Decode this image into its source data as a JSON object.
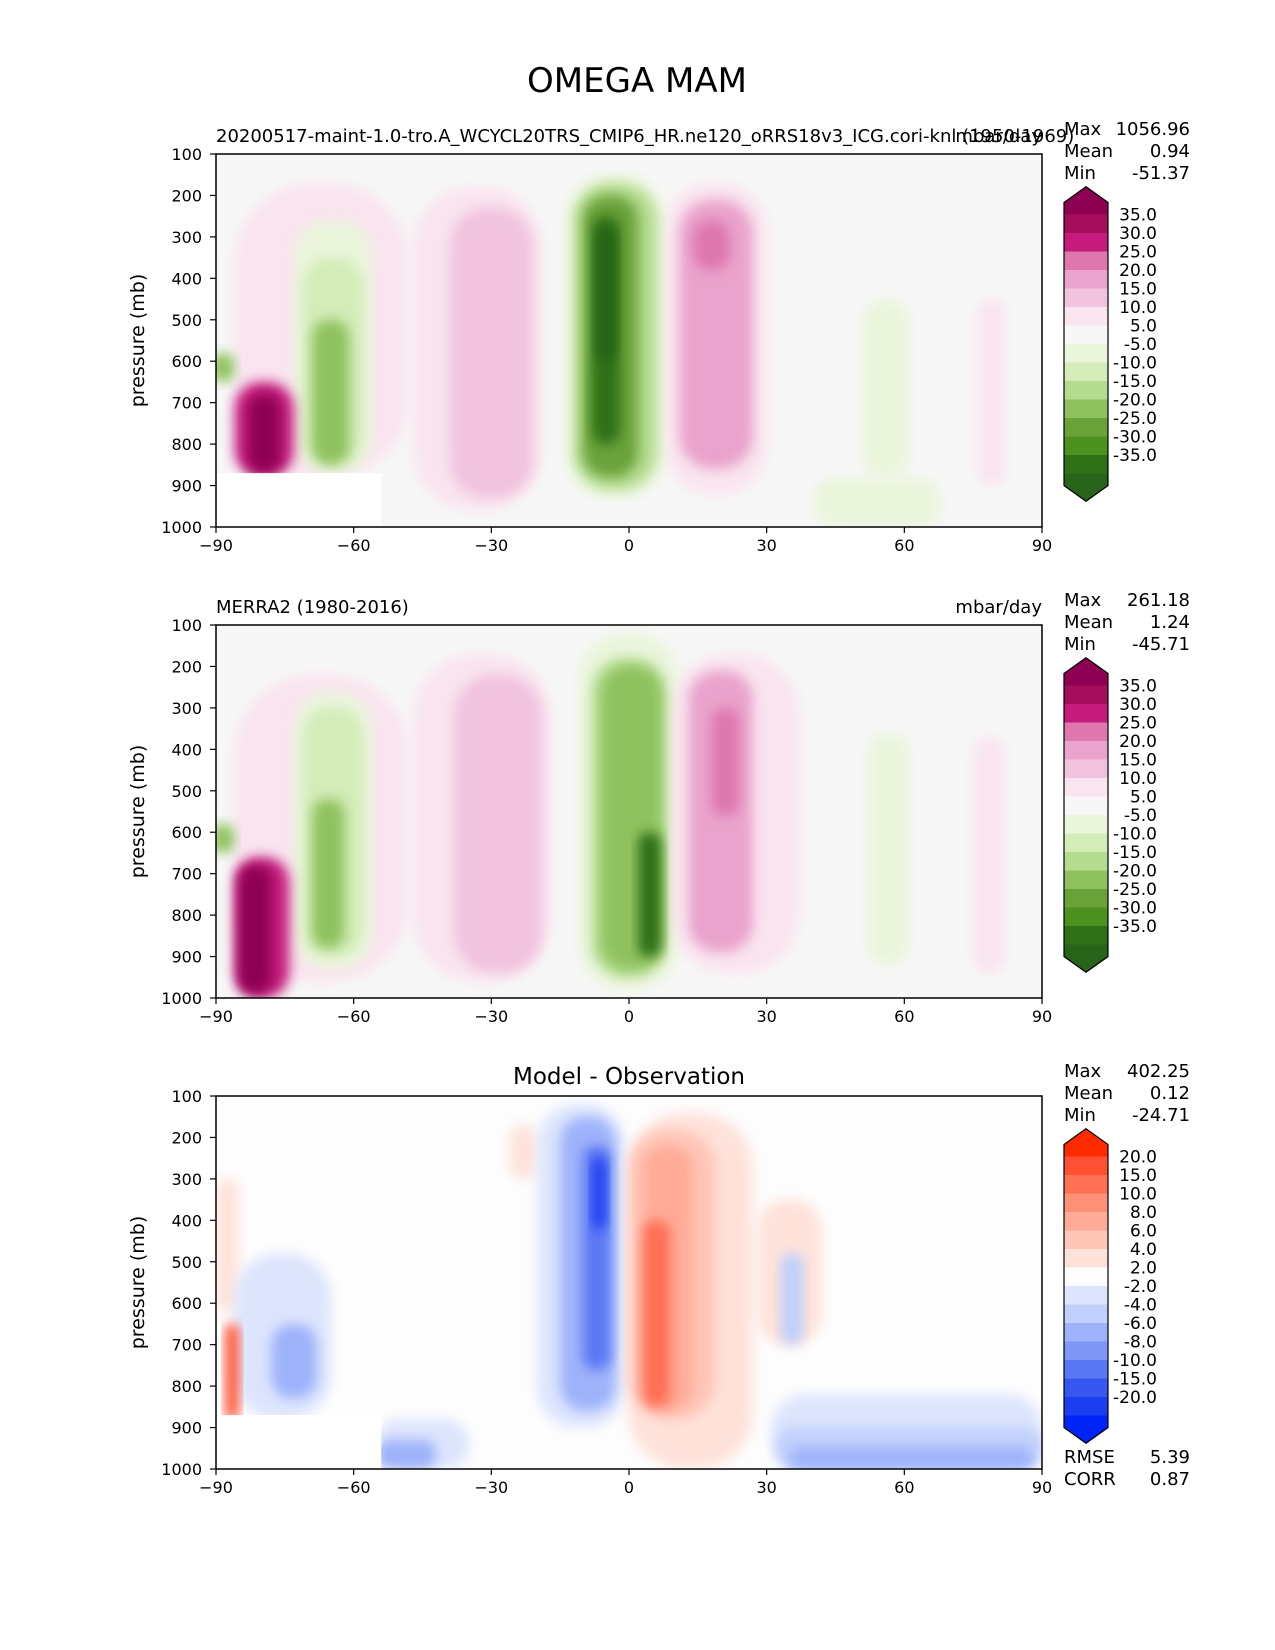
{
  "figure": {
    "title": "OMEGA MAM"
  },
  "chart_data": [
    {
      "type": "heatmap",
      "title": "",
      "subtitle_left": "20200517-maint-1.0-tro.A_WCYCL20TRS_CMIP6_HR.ne120_oRRS18v3_ICG.cori-knl (1950-1969)",
      "units": "mbar/day",
      "xlabel": "",
      "ylabel": "pressure (mb)",
      "xlim": [
        -90,
        90
      ],
      "ylim": [
        1000,
        100
      ],
      "xticks": [
        "−90",
        "−60",
        "−30",
        "0",
        "30",
        "60",
        "90"
      ],
      "yticks": [
        "100",
        "200",
        "300",
        "400",
        "500",
        "600",
        "700",
        "800",
        "900",
        "1000"
      ],
      "stats": {
        "labels": [
          "Max",
          "Mean",
          "Min"
        ],
        "values": [
          "1056.96",
          "0.94",
          "-51.37"
        ]
      },
      "colorbar": {
        "labels": [
          "35.0",
          "30.0",
          "25.0",
          "20.0",
          "15.0",
          "10.0",
          "5.0",
          "-5.0",
          "-10.0",
          "-15.0",
          "-20.0",
          "-25.0",
          "-30.0",
          "-35.0"
        ],
        "colors": [
          "#8e0152",
          "#a50d5d",
          "#c51b7d",
          "#de77ae",
          "#eaa3cc",
          "#f1c3df",
          "#f9e4ef",
          "#f7f7f7",
          "#eaf5dc",
          "#d3ecb8",
          "#b3dc8e",
          "#8fc25e",
          "#6aa23a",
          "#4d9221",
          "#2f7018",
          "#276419"
        ]
      },
      "features": [
        {
          "type": "pos",
          "level": 1,
          "lat": [
            -86,
            -48
          ],
          "p": [
            170,
            880
          ]
        },
        {
          "type": "pos",
          "level": 5,
          "lat": [
            -86,
            -73
          ],
          "p": [
            650,
            880
          ]
        },
        {
          "type": "pos",
          "level": 7,
          "lat": [
            -83,
            -76
          ],
          "p": [
            680,
            870
          ]
        },
        {
          "type": "neg",
          "level": 4,
          "lat": [
            -91,
            -86
          ],
          "p": [
            580,
            650
          ]
        },
        {
          "type": "neg",
          "level": 1,
          "lat": [
            -73,
            -56
          ],
          "p": [
            260,
            870
          ]
        },
        {
          "type": "neg",
          "level": 2,
          "lat": [
            -71,
            -58
          ],
          "p": [
            350,
            850
          ]
        },
        {
          "type": "neg",
          "level": 4,
          "lat": [
            -69,
            -61
          ],
          "p": [
            500,
            850
          ]
        },
        {
          "type": "pos",
          "level": 1,
          "lat": [
            -47,
            -19
          ],
          "p": [
            180,
            960
          ]
        },
        {
          "type": "pos",
          "level": 2,
          "lat": [
            -39,
            -21
          ],
          "p": [
            230,
            930
          ]
        },
        {
          "type": "neg",
          "level": 1,
          "lat": [
            -14,
            8
          ],
          "p": [
            150,
            930
          ]
        },
        {
          "type": "neg",
          "level": 3,
          "lat": [
            -12,
            6
          ],
          "p": [
            170,
            910
          ]
        },
        {
          "type": "neg",
          "level": 5,
          "lat": [
            -10,
            2
          ],
          "p": [
            200,
            880
          ]
        },
        {
          "type": "neg",
          "level": 7,
          "lat": [
            -8,
            -2
          ],
          "p": [
            250,
            800
          ]
        },
        {
          "type": "neg",
          "level": 8,
          "lat": [
            -7,
            -3
          ],
          "p": [
            280,
            600
          ]
        },
        {
          "type": "pos",
          "level": 1,
          "lat": [
            8,
            30
          ],
          "p": [
            170,
            920
          ]
        },
        {
          "type": "pos",
          "level": 3,
          "lat": [
            11,
            27
          ],
          "p": [
            210,
            860
          ]
        },
        {
          "type": "pos",
          "level": 4,
          "lat": [
            14,
            22
          ],
          "p": [
            260,
            380
          ]
        },
        {
          "type": "neg",
          "level": 1,
          "lat": [
            40,
            68
          ],
          "p": [
            880,
            1000
          ]
        },
        {
          "type": "neg",
          "level": 1,
          "lat": [
            51,
            61
          ],
          "p": [
            450,
            880
          ]
        },
        {
          "type": "pos",
          "level": 1,
          "lat": [
            76,
            82
          ],
          "p": [
            450,
            900
          ]
        }
      ],
      "mask": {
        "lat": [
          -90,
          -54
        ],
        "p": [
          870,
          1000
        ]
      }
    },
    {
      "type": "heatmap",
      "title": "",
      "subtitle_left": "MERRA2 (1980-2016)",
      "units": "mbar/day",
      "xlabel": "",
      "ylabel": "pressure (mb)",
      "xlim": [
        -90,
        90
      ],
      "ylim": [
        1000,
        100
      ],
      "xticks": [
        "−90",
        "−60",
        "−30",
        "0",
        "30",
        "60",
        "90"
      ],
      "yticks": [
        "100",
        "200",
        "300",
        "400",
        "500",
        "600",
        "700",
        "800",
        "900",
        "1000"
      ],
      "stats": {
        "labels": [
          "Max",
          "Mean",
          "Min"
        ],
        "values": [
          "261.18",
          "1.24",
          "-45.71"
        ]
      },
      "colorbar": {
        "labels": [
          "35.0",
          "30.0",
          "25.0",
          "20.0",
          "15.0",
          "10.0",
          "5.0",
          "-5.0",
          "-10.0",
          "-15.0",
          "-20.0",
          "-25.0",
          "-30.0",
          "-35.0"
        ],
        "colors": [
          "#8e0152",
          "#a50d5d",
          "#c51b7d",
          "#de77ae",
          "#eaa3cc",
          "#f1c3df",
          "#f9e4ef",
          "#f7f7f7",
          "#eaf5dc",
          "#d3ecb8",
          "#b3dc8e",
          "#8fc25e",
          "#6aa23a",
          "#4d9221",
          "#2f7018",
          "#276419"
        ]
      },
      "features": [
        {
          "type": "pos",
          "level": 1,
          "lat": [
            -86,
            -48
          ],
          "p": [
            220,
            960
          ]
        },
        {
          "type": "pos",
          "level": 5,
          "lat": [
            -86,
            -74
          ],
          "p": [
            660,
            1000
          ]
        },
        {
          "type": "pos",
          "level": 7,
          "lat": [
            -85,
            -78
          ],
          "p": [
            680,
            990
          ]
        },
        {
          "type": "neg",
          "level": 4,
          "lat": [
            -91,
            -86
          ],
          "p": [
            580,
            650
          ]
        },
        {
          "type": "neg",
          "level": 1,
          "lat": [
            -73,
            -56
          ],
          "p": [
            260,
            930
          ]
        },
        {
          "type": "neg",
          "level": 2,
          "lat": [
            -71,
            -58
          ],
          "p": [
            300,
            900
          ]
        },
        {
          "type": "neg",
          "level": 4,
          "lat": [
            -69,
            -62
          ],
          "p": [
            520,
            880
          ]
        },
        {
          "type": "pos",
          "level": 1,
          "lat": [
            -47,
            -17
          ],
          "p": [
            170,
            960
          ]
        },
        {
          "type": "pos",
          "level": 2,
          "lat": [
            -38,
            -19
          ],
          "p": [
            220,
            940
          ]
        },
        {
          "type": "neg",
          "level": 1,
          "lat": [
            -11,
            11
          ],
          "p": [
            120,
            980
          ]
        },
        {
          "type": "neg",
          "level": 3,
          "lat": [
            -8,
            8
          ],
          "p": [
            180,
            950
          ]
        },
        {
          "type": "neg",
          "level": 4,
          "lat": [
            -6,
            7
          ],
          "p": [
            200,
            930
          ]
        },
        {
          "type": "neg",
          "level": 7,
          "lat": [
            2,
            7
          ],
          "p": [
            600,
            900
          ]
        },
        {
          "type": "pos",
          "level": 1,
          "lat": [
            9,
            37
          ],
          "p": [
            170,
            940
          ]
        },
        {
          "type": "pos",
          "level": 3,
          "lat": [
            13,
            27
          ],
          "p": [
            210,
            890
          ]
        },
        {
          "type": "pos",
          "level": 4,
          "lat": [
            18,
            24
          ],
          "p": [
            300,
            560
          ]
        },
        {
          "type": "neg",
          "level": 1,
          "lat": [
            52,
            61
          ],
          "p": [
            360,
            920
          ]
        },
        {
          "type": "pos",
          "level": 1,
          "lat": [
            75,
            82
          ],
          "p": [
            370,
            940
          ]
        }
      ],
      "mask": null
    },
    {
      "type": "heatmap",
      "title": "Model - Observation",
      "subtitle_left": "",
      "units": "",
      "xlabel": "",
      "ylabel": "pressure (mb)",
      "xlim": [
        -90,
        90
      ],
      "ylim": [
        1000,
        100
      ],
      "xticks": [
        "−90",
        "−60",
        "−30",
        "0",
        "30",
        "60",
        "90"
      ],
      "yticks": [
        "100",
        "200",
        "300",
        "400",
        "500",
        "600",
        "700",
        "800",
        "900",
        "1000"
      ],
      "stats": {
        "labels": [
          "Max",
          "Mean",
          "Min"
        ],
        "values": [
          "402.25",
          "0.12",
          "-24.71"
        ]
      },
      "metrics": {
        "labels": [
          "RMSE",
          "CORR"
        ],
        "values": [
          "5.39",
          "0.87"
        ]
      },
      "colorbar": {
        "labels": [
          "20.0",
          "15.0",
          "10.0",
          "8.0",
          "6.0",
          "4.0",
          "2.0",
          "-2.0",
          "-4.0",
          "-6.0",
          "-8.0",
          "-10.0",
          "-15.0",
          "-20.0"
        ],
        "colors": [
          "#ff2a00",
          "#ff5033",
          "#ff7055",
          "#ff9078",
          "#ffab98",
          "#ffc6b8",
          "#fee2da",
          "#fdfdfd",
          "#dde5fd",
          "#c0cffc",
          "#9eb2fa",
          "#7f97f7",
          "#5a77f4",
          "#3757f0",
          "#1c3ef0",
          "#0024f5"
        ]
      },
      "features": [
        {
          "type": "pos",
          "level": 1,
          "lat": [
            -90,
            -85
          ],
          "p": [
            300,
            620
          ]
        },
        {
          "type": "pos",
          "level": 6,
          "lat": [
            -88,
            -85
          ],
          "p": [
            650,
            880
          ]
        },
        {
          "type": "neg",
          "level": 1,
          "lat": [
            -86,
            -65
          ],
          "p": [
            480,
            880
          ]
        },
        {
          "type": "neg",
          "level": 3,
          "lat": [
            -78,
            -68
          ],
          "p": [
            650,
            830
          ]
        },
        {
          "type": "neg",
          "level": 1,
          "lat": [
            -55,
            -35
          ],
          "p": [
            880,
            1000
          ]
        },
        {
          "type": "neg",
          "level": 3,
          "lat": [
            -55,
            -42
          ],
          "p": [
            930,
            1000
          ]
        },
        {
          "type": "pos",
          "level": 1,
          "lat": [
            -26,
            -20
          ],
          "p": [
            170,
            300
          ]
        },
        {
          "type": "neg",
          "level": 1,
          "lat": [
            -20,
            -1
          ],
          "p": [
            120,
            900
          ]
        },
        {
          "type": "neg",
          "level": 3,
          "lat": [
            -15,
            -3
          ],
          "p": [
            150,
            860
          ]
        },
        {
          "type": "neg",
          "level": 5,
          "lat": [
            -10,
            -4
          ],
          "p": [
            220,
            760
          ]
        },
        {
          "type": "neg",
          "level": 7,
          "lat": [
            -8,
            -5
          ],
          "p": [
            250,
            420
          ]
        },
        {
          "type": "pos",
          "level": 1,
          "lat": [
            0,
            27
          ],
          "p": [
            140,
            1000
          ]
        },
        {
          "type": "pos",
          "level": 2,
          "lat": [
            0,
            19
          ],
          "p": [
            180,
            880
          ]
        },
        {
          "type": "pos",
          "level": 3,
          "lat": [
            3,
            14
          ],
          "p": [
            220,
            860
          ]
        },
        {
          "type": "pos",
          "level": 5,
          "lat": [
            3,
            9
          ],
          "p": [
            400,
            850
          ]
        },
        {
          "type": "pos",
          "level": 1,
          "lat": [
            28,
            42
          ],
          "p": [
            350,
            700
          ]
        },
        {
          "type": "neg",
          "level": 1,
          "lat": [
            31,
            90
          ],
          "p": [
            820,
            1000
          ]
        },
        {
          "type": "neg",
          "level": 2,
          "lat": [
            32,
            90
          ],
          "p": [
            900,
            1000
          ]
        },
        {
          "type": "neg",
          "level": 3,
          "lat": [
            35,
            88
          ],
          "p": [
            950,
            1000
          ]
        },
        {
          "type": "neg",
          "level": 2,
          "lat": [
            33,
            38
          ],
          "p": [
            480,
            700
          ]
        }
      ],
      "mask": {
        "lat": [
          -90,
          -54
        ],
        "p": [
          870,
          1000
        ]
      }
    }
  ]
}
